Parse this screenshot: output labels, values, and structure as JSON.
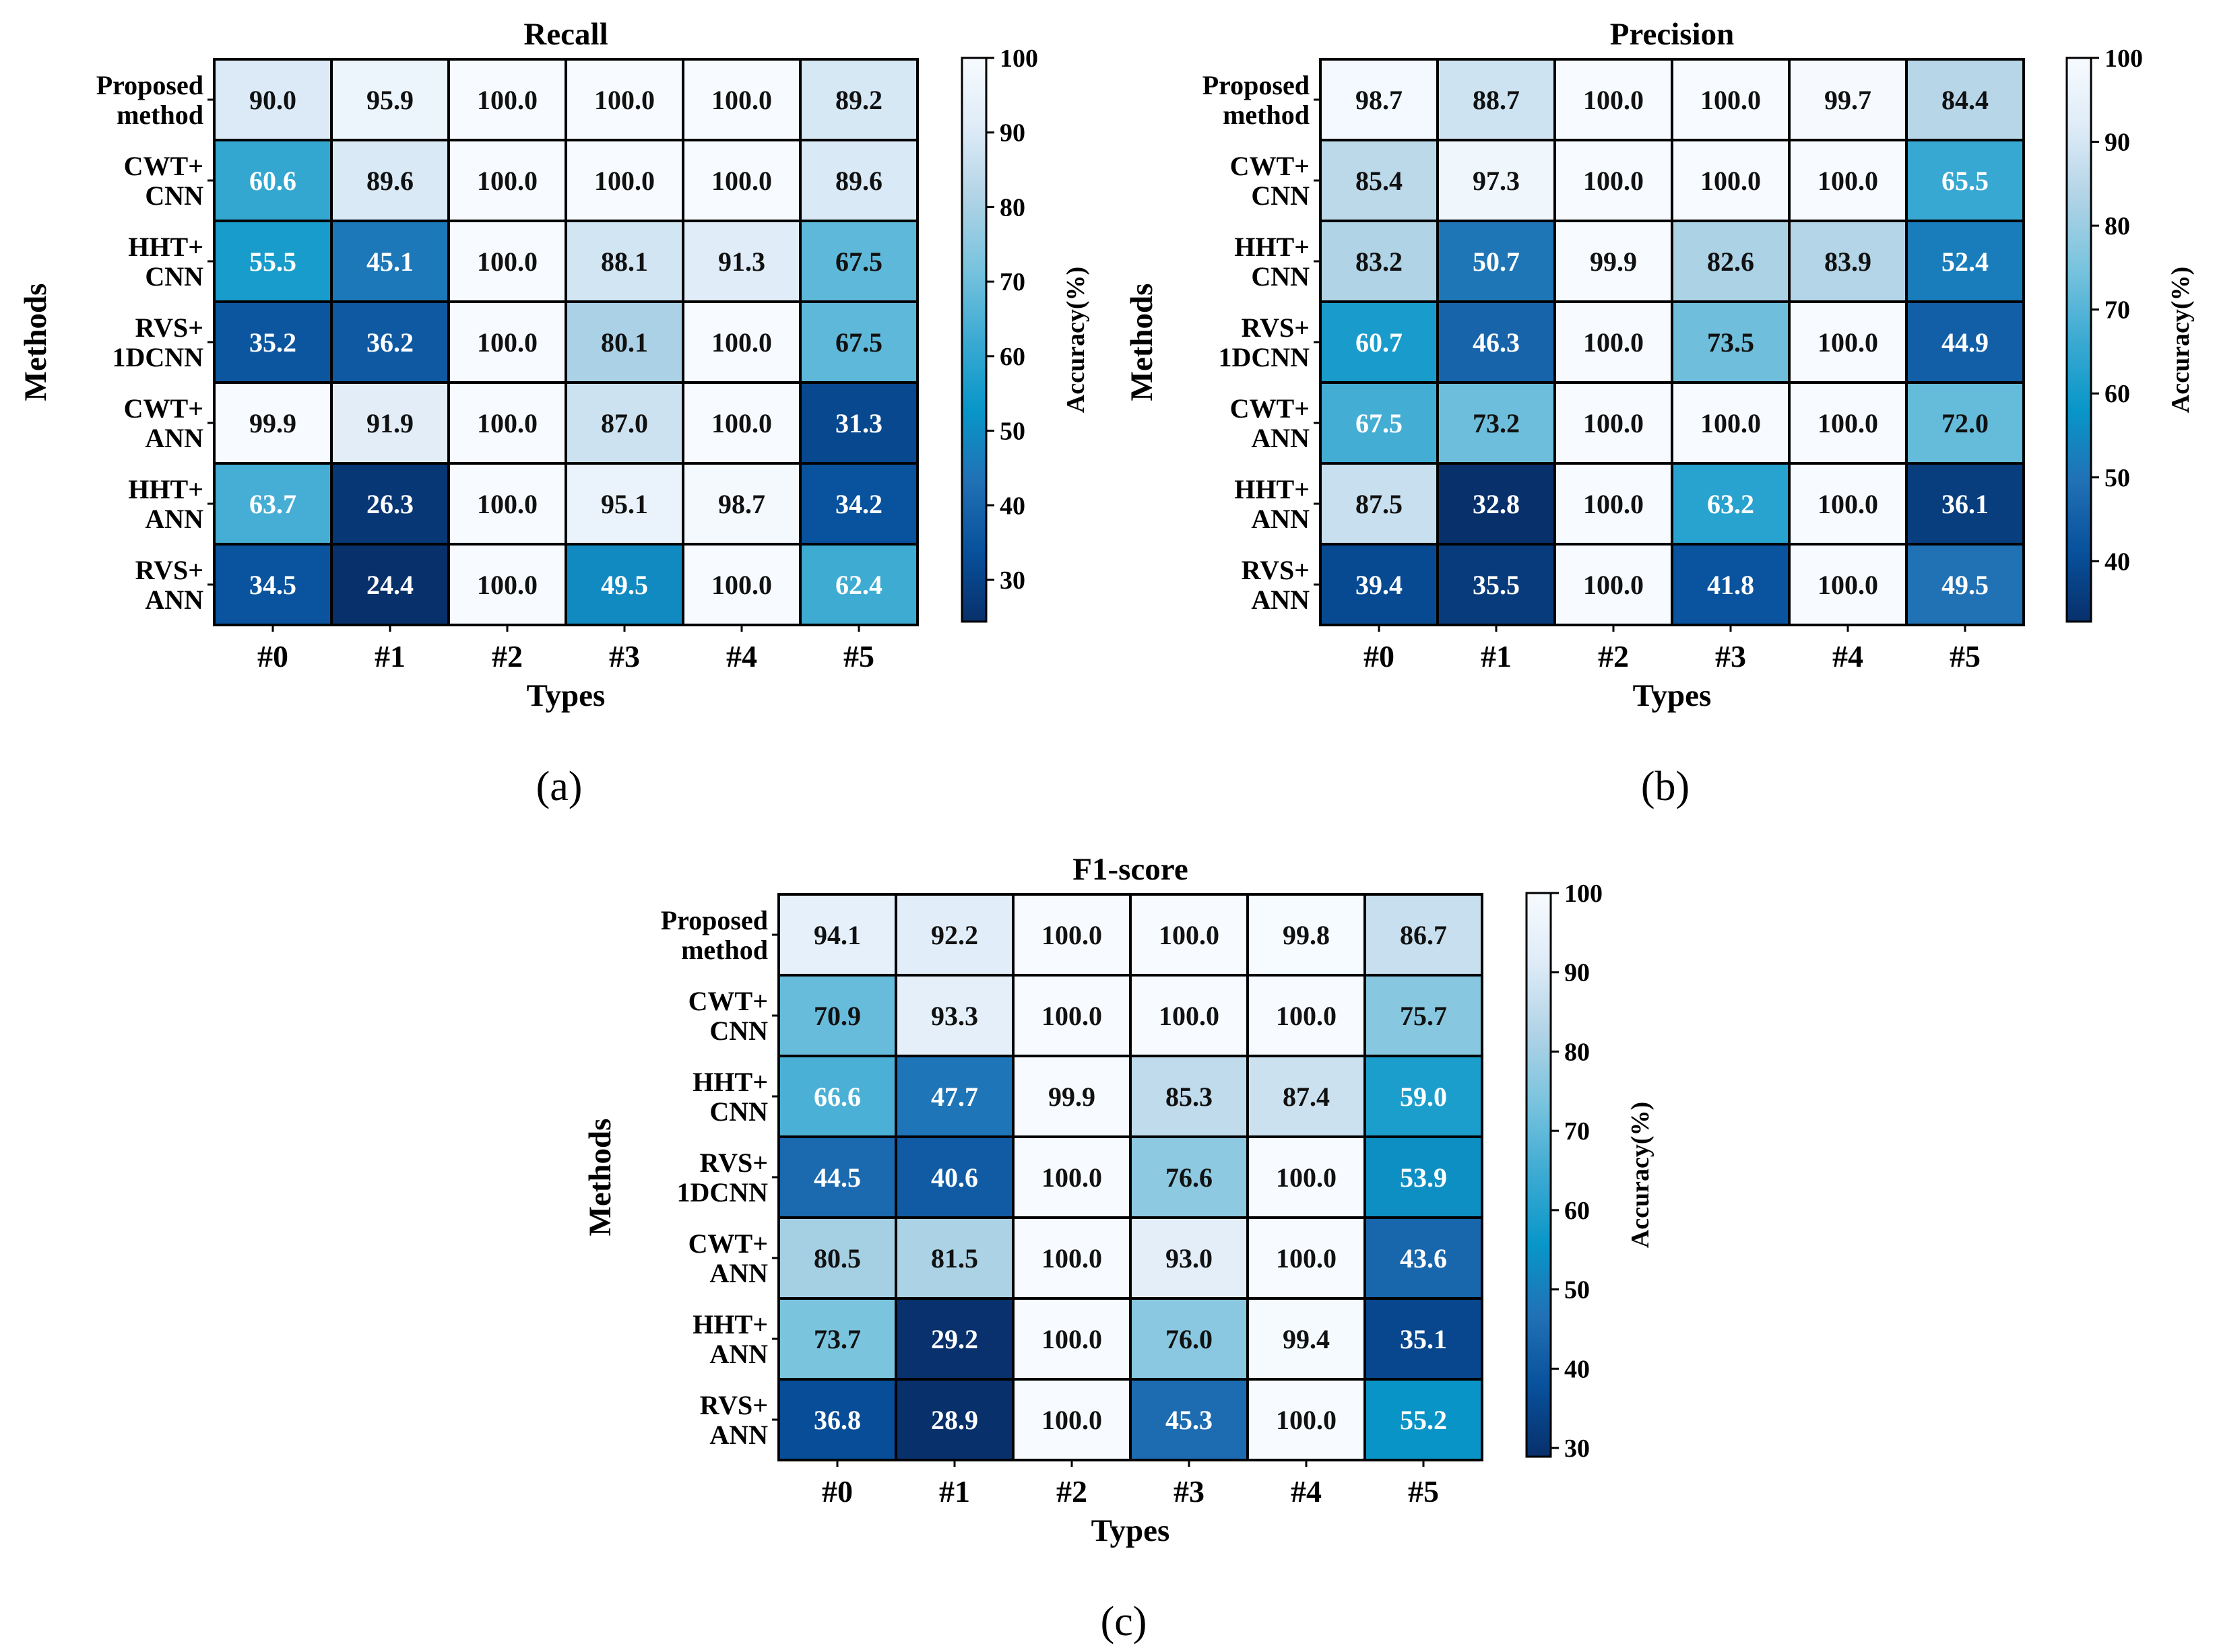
{
  "chart_data": [
    {
      "type": "heatmap",
      "title": "Recall",
      "caption": "(a)",
      "xlabel": "Types",
      "ylabel": "Methods",
      "rows": [
        [
          "Proposed",
          "method"
        ],
        [
          "CWT+",
          "CNN"
        ],
        [
          "HHT+",
          "CNN"
        ],
        [
          "RVS+",
          "1DCNN"
        ],
        [
          "CWT+",
          "ANN"
        ],
        [
          "HHT+",
          "ANN"
        ],
        [
          "RVS+",
          "ANN"
        ]
      ],
      "columns": [
        "#0",
        "#1",
        "#2",
        "#3",
        "#4",
        "#5"
      ],
      "values": [
        [
          90.0,
          95.9,
          100.0,
          100.0,
          100.0,
          89.2
        ],
        [
          60.6,
          89.6,
          100.0,
          100.0,
          100.0,
          89.6
        ],
        [
          55.5,
          45.1,
          100.0,
          88.1,
          91.3,
          67.5
        ],
        [
          35.2,
          36.2,
          100.0,
          80.1,
          100.0,
          67.5
        ],
        [
          99.9,
          91.9,
          100.0,
          87.0,
          100.0,
          31.3
        ],
        [
          63.7,
          26.3,
          100.0,
          95.1,
          98.7,
          34.2
        ],
        [
          34.5,
          24.4,
          100.0,
          49.5,
          100.0,
          62.4
        ]
      ],
      "colorbar": {
        "label": "Accuracy(%)",
        "range": [
          24.4,
          100
        ],
        "ticks": [
          30,
          40,
          50,
          60,
          70,
          80,
          90,
          100
        ]
      }
    },
    {
      "type": "heatmap",
      "title": "Precision",
      "caption": "(b)",
      "xlabel": "Types",
      "ylabel": "Methods",
      "rows": [
        [
          "Proposed",
          "method"
        ],
        [
          "CWT+",
          "CNN"
        ],
        [
          "HHT+",
          "CNN"
        ],
        [
          "RVS+",
          "1DCNN"
        ],
        [
          "CWT+",
          "ANN"
        ],
        [
          "HHT+",
          "ANN"
        ],
        [
          "RVS+",
          "ANN"
        ]
      ],
      "columns": [
        "#0",
        "#1",
        "#2",
        "#3",
        "#4",
        "#5"
      ],
      "values": [
        [
          98.7,
          88.7,
          100.0,
          100.0,
          99.7,
          84.4
        ],
        [
          85.4,
          97.3,
          100.0,
          100.0,
          100.0,
          65.5
        ],
        [
          83.2,
          50.7,
          99.9,
          82.6,
          83.9,
          52.4
        ],
        [
          60.7,
          46.3,
          100.0,
          73.5,
          100.0,
          44.9
        ],
        [
          67.5,
          73.2,
          100.0,
          100.0,
          100.0,
          72.0
        ],
        [
          87.5,
          32.8,
          100.0,
          63.2,
          100.0,
          36.1
        ],
        [
          39.4,
          35.5,
          100.0,
          41.8,
          100.0,
          49.5
        ]
      ],
      "colorbar": {
        "label": "Accuracy(%)",
        "range": [
          32.8,
          100
        ],
        "ticks": [
          40,
          50,
          60,
          70,
          80,
          90,
          100
        ]
      }
    },
    {
      "type": "heatmap",
      "title": "F1-score",
      "caption": "(c)",
      "xlabel": "Types",
      "ylabel": "Methods",
      "rows": [
        [
          "Proposed",
          "method"
        ],
        [
          "CWT+",
          "CNN"
        ],
        [
          "HHT+",
          "CNN"
        ],
        [
          "RVS+",
          "1DCNN"
        ],
        [
          "CWT+",
          "ANN"
        ],
        [
          "HHT+",
          "ANN"
        ],
        [
          "RVS+",
          "ANN"
        ]
      ],
      "columns": [
        "#0",
        "#1",
        "#2",
        "#3",
        "#4",
        "#5"
      ],
      "values": [
        [
          94.1,
          92.2,
          100.0,
          100.0,
          99.8,
          86.7
        ],
        [
          70.9,
          93.3,
          100.0,
          100.0,
          100.0,
          75.7
        ],
        [
          66.6,
          47.7,
          99.9,
          85.3,
          87.4,
          59.0
        ],
        [
          44.5,
          40.6,
          100.0,
          76.6,
          100.0,
          53.9
        ],
        [
          80.5,
          81.5,
          100.0,
          93.0,
          100.0,
          43.6
        ],
        [
          73.7,
          29.2,
          100.0,
          76.0,
          99.4,
          35.1
        ],
        [
          36.8,
          28.9,
          100.0,
          45.3,
          100.0,
          55.2
        ]
      ],
      "colorbar": {
        "label": "Accuracy(%)",
        "range": [
          28.9,
          100
        ],
        "ticks": [
          30,
          40,
          50,
          60,
          70,
          80,
          90,
          100
        ]
      }
    }
  ]
}
